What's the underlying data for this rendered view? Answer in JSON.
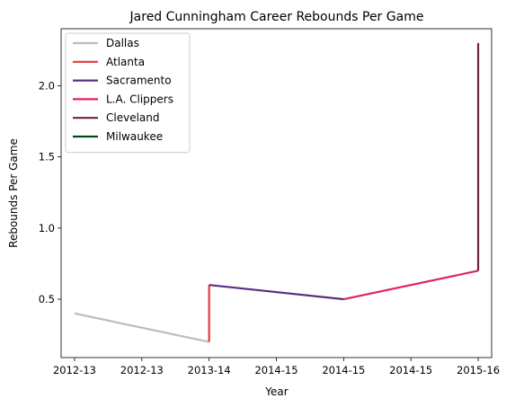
{
  "chart_data": {
    "type": "line",
    "title": "Jared Cunningham Career Rebounds Per Game",
    "xlabel": "Year",
    "ylabel": "Rebounds Per Game",
    "x_tick_labels": [
      "2012-13",
      "2012-13",
      "2013-14",
      "2014-15",
      "2014-15",
      "2014-15",
      "2015-16"
    ],
    "y_ticks": [
      0.5,
      1.0,
      1.5,
      2.0
    ],
    "y_tick_labels": [
      "0.5",
      "1.0",
      "1.5",
      "2.0"
    ],
    "xlim": [
      -0.1,
      3.1
    ],
    "ylim": [
      0.09,
      2.4
    ],
    "grid": false,
    "legend_position": "top-left",
    "series": [
      {
        "name": "Dallas",
        "color": "#bdbdbd",
        "x": [
          0,
          1
        ],
        "y": [
          0.4,
          0.2
        ]
      },
      {
        "name": "Atlanta",
        "color": "#e03a3e",
        "x": [
          1,
          1
        ],
        "y": [
          0.2,
          0.6
        ]
      },
      {
        "name": "Sacramento",
        "color": "#5a2d81",
        "x": [
          1,
          2
        ],
        "y": [
          0.6,
          0.5
        ]
      },
      {
        "name": "L.A. Clippers",
        "color": "#e0245e",
        "x": [
          2,
          3
        ],
        "y": [
          0.5,
          0.7
        ]
      },
      {
        "name": "Cleveland",
        "color": "#6f263d",
        "x": [
          3,
          3
        ],
        "y": [
          0.7,
          2.3
        ]
      },
      {
        "name": "Milwaukee",
        "color": "#00471b",
        "x": [
          3,
          3
        ],
        "y": [
          2.3,
          2.3
        ]
      }
    ]
  }
}
